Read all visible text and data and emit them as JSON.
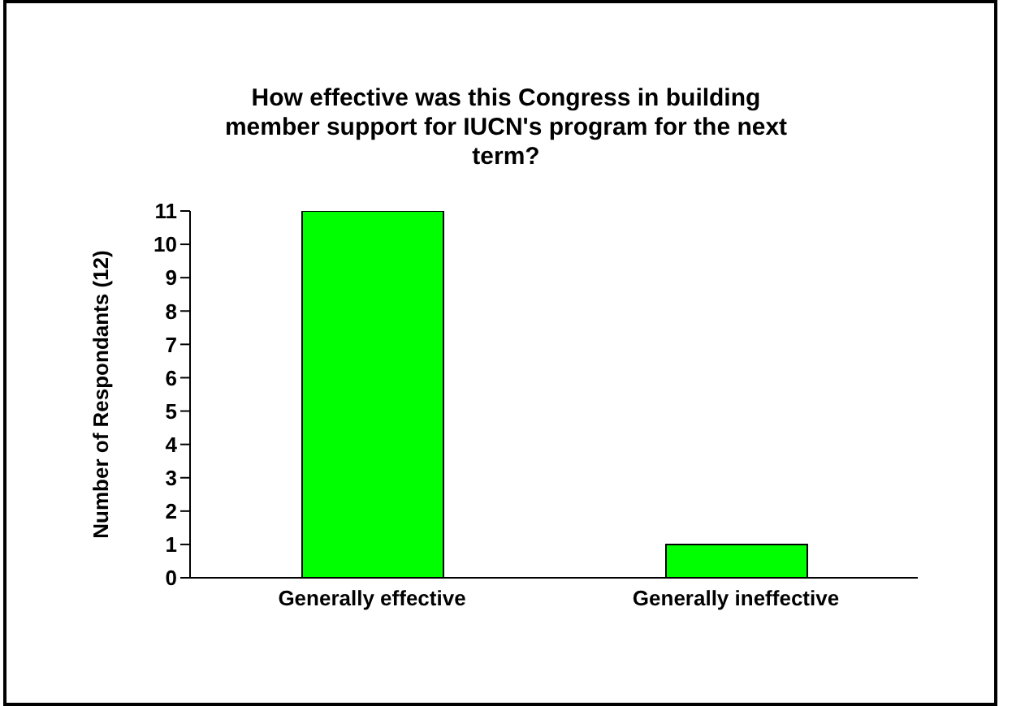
{
  "chart_data": {
    "type": "bar",
    "title": "How effective was this Congress in building member support for IUCN's program for the next term?",
    "ylabel": "Number of Respondants (12)",
    "categories": [
      "Generally effective",
      "Generally ineffective"
    ],
    "values": [
      11,
      1
    ],
    "color": "#00ff00",
    "ylim": [
      0,
      11
    ],
    "yticks": [
      0,
      1,
      2,
      3,
      4,
      5,
      6,
      7,
      8,
      9,
      10,
      11
    ]
  }
}
